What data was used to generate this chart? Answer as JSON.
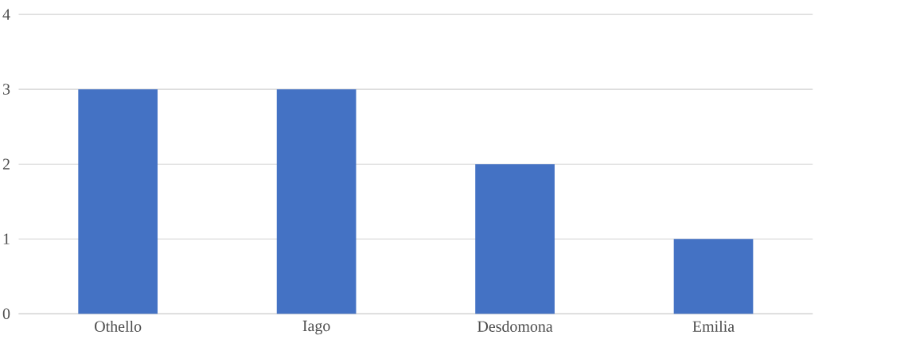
{
  "chart_data": {
    "type": "bar",
    "categories": [
      "Othello",
      "Iago",
      "Desdomona",
      "Emilia"
    ],
    "values": [
      3,
      3,
      2,
      1
    ],
    "color": "#4472c4",
    "ylim": [
      0,
      4
    ],
    "yticks": [
      0,
      1,
      2,
      3,
      4
    ],
    "grid": "y"
  }
}
